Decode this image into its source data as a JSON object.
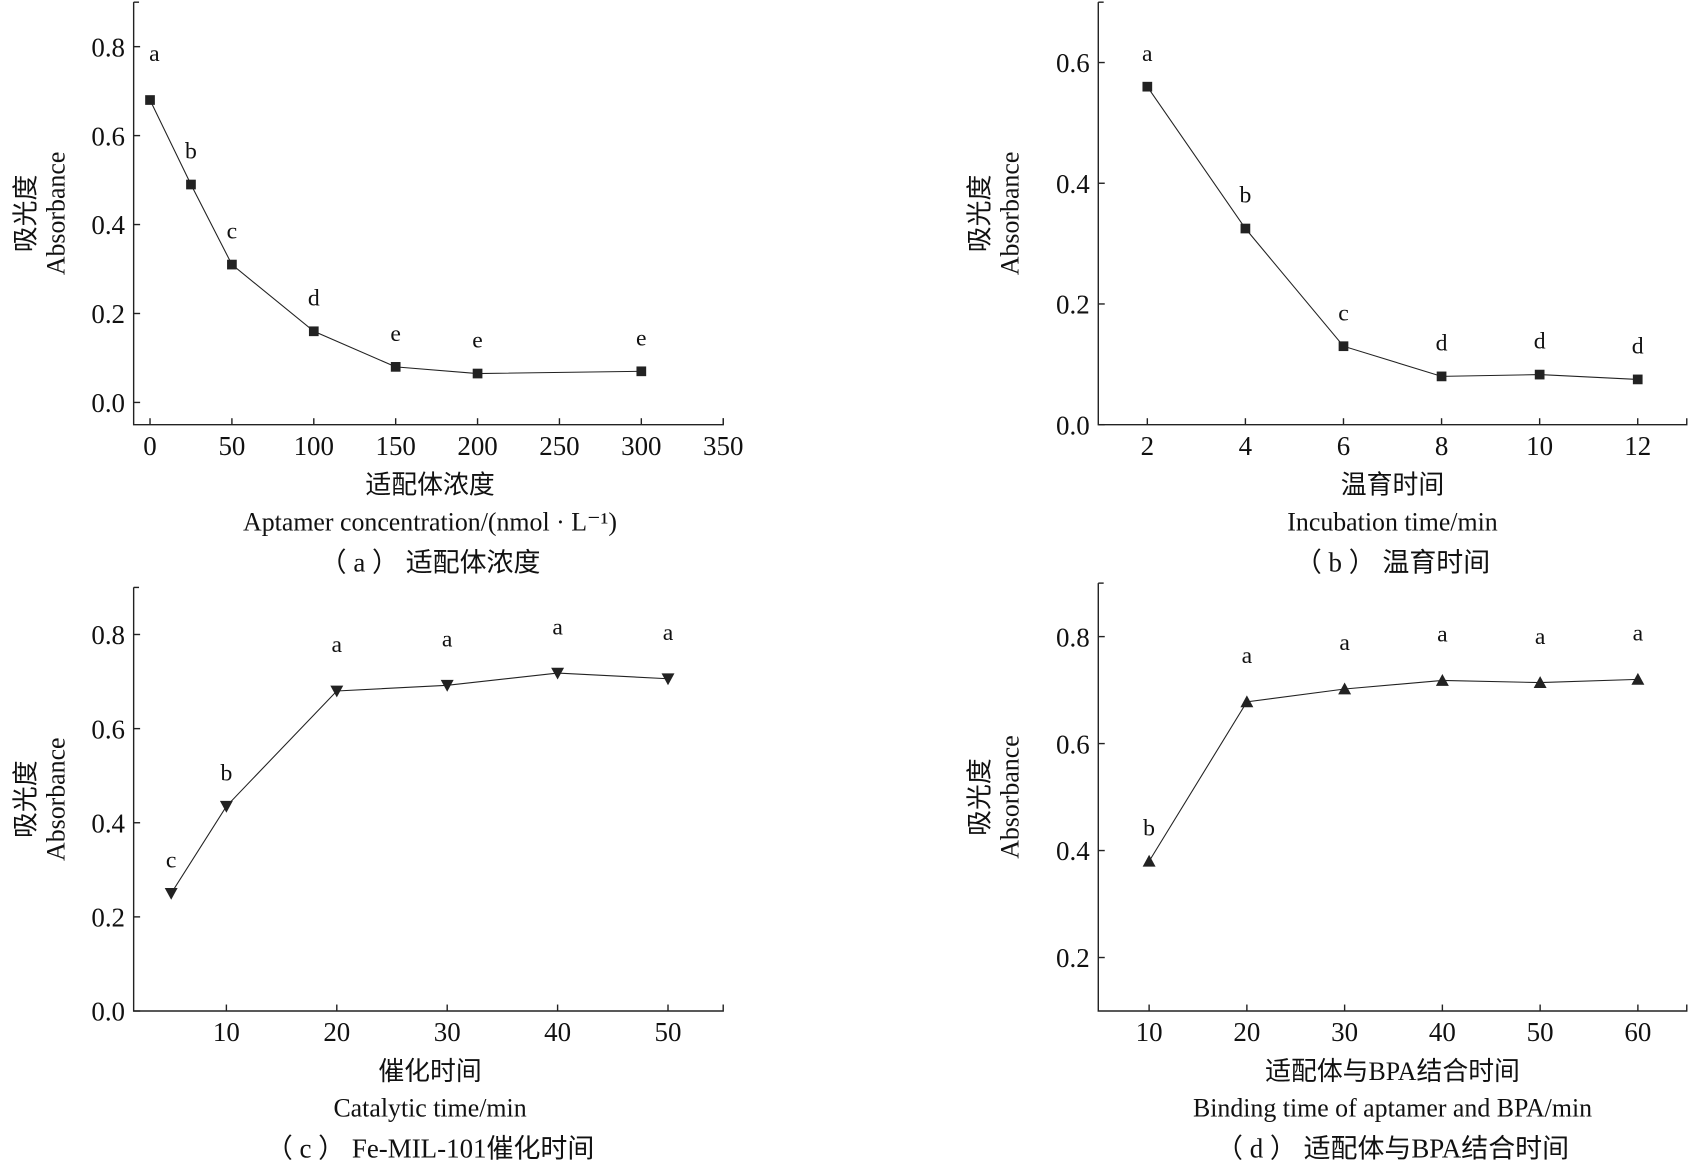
{
  "chart_data": [
    {
      "type": "line",
      "panel": "(a) 适配体浓度",
      "caption": "（ a ） 适配体浓度",
      "xlabel_cn": "适配体浓度",
      "xlabel_en": "Aptamer concentration/(nmol · L⁻¹)",
      "ylabel_cn": "吸光度",
      "ylabel_en": "Absorbance",
      "marker": "square",
      "x": [
        0,
        25,
        50,
        100,
        150,
        200,
        300
      ],
      "y": [
        0.68,
        0.49,
        0.31,
        0.16,
        0.08,
        0.065,
        0.07
      ],
      "significance": [
        "a",
        "b",
        "c",
        "d",
        "e",
        "e",
        "e"
      ],
      "xlim": [
        -10,
        350
      ],
      "ylim": [
        -0.05,
        0.9
      ],
      "xticks": [
        "0",
        "50",
        "100",
        "150",
        "200",
        "250",
        "300",
        "350"
      ],
      "xtick_values": [
        0,
        50,
        100,
        150,
        200,
        250,
        300,
        350
      ],
      "yticks": [
        "0.0",
        "0.2",
        "0.4",
        "0.6",
        "0.8"
      ],
      "ytick_values": [
        0,
        0.2,
        0.4,
        0.6,
        0.8
      ]
    },
    {
      "type": "line",
      "panel": "(b) 温育时间",
      "caption": "（ b ） 温育时间",
      "xlabel_cn": "温育时间",
      "xlabel_en": "Incubation time/min",
      "ylabel_cn": "吸光度",
      "ylabel_en": "Absorbance",
      "marker": "square",
      "x": [
        2,
        4,
        6,
        8,
        10,
        12
      ],
      "y": [
        0.56,
        0.325,
        0.13,
        0.08,
        0.083,
        0.075
      ],
      "significance": [
        "a",
        "b",
        "c",
        "d",
        "d",
        "d"
      ],
      "xlim": [
        1,
        13
      ],
      "ylim": [
        0,
        0.7
      ],
      "xticks": [
        "2",
        "4",
        "6",
        "8",
        "10",
        "12"
      ],
      "xtick_values": [
        2,
        4,
        6,
        8,
        10,
        12
      ],
      "yticks": [
        "0.0",
        "0.2",
        "0.4",
        "0.6"
      ],
      "ytick_values": [
        0,
        0.2,
        0.4,
        0.6
      ]
    },
    {
      "type": "line",
      "panel": "(c) Fe-MIL-101催化时间",
      "caption": "（ c ） Fe-MIL-101催化时间",
      "xlabel_cn": "催化时间",
      "xlabel_en": "Catalytic time/min",
      "ylabel_cn": "吸光度",
      "ylabel_en": "Absorbance",
      "marker": "triangle-down",
      "x": [
        5,
        10,
        20,
        30,
        40,
        50
      ],
      "y": [
        0.25,
        0.435,
        0.68,
        0.692,
        0.718,
        0.706
      ],
      "significance": [
        "c",
        "b",
        "a",
        "a",
        "a",
        "a"
      ],
      "xlim": [
        1.6,
        55
      ],
      "ylim": [
        0,
        0.9
      ],
      "xticks": [
        "10",
        "20",
        "30",
        "40",
        "50"
      ],
      "xtick_values": [
        10,
        20,
        30,
        40,
        50
      ],
      "yticks": [
        "0.0",
        "0.2",
        "0.4",
        "0.6",
        "0.8"
      ],
      "ytick_values": [
        0,
        0.2,
        0.4,
        0.6,
        0.8
      ]
    },
    {
      "type": "line",
      "panel": "(d) 适配体与BPA结合时间",
      "caption": "（ d ） 适配体与BPA结合时间",
      "xlabel_cn": "适配体与BPA结合时间",
      "xlabel_en": "Binding time of aptamer and BPA/min",
      "ylabel_cn": "吸光度",
      "ylabel_en": "Absorbance",
      "marker": "triangle-up",
      "x": [
        10,
        20,
        30,
        40,
        50,
        60
      ],
      "y": [
        0.38,
        0.678,
        0.702,
        0.718,
        0.714,
        0.72
      ],
      "significance": [
        "b",
        "a",
        "a",
        "a",
        "a",
        "a"
      ],
      "xlim": [
        4.8,
        65
      ],
      "ylim": [
        0.1,
        0.9
      ],
      "xticks": [
        "10",
        "20",
        "30",
        "40",
        "50",
        "60"
      ],
      "xtick_values": [
        10,
        20,
        30,
        40,
        50,
        60
      ],
      "yticks": [
        "0.2",
        "0.4",
        "0.6",
        "0.8"
      ],
      "ytick_values": [
        0.2,
        0.4,
        0.6,
        0.8
      ]
    }
  ]
}
